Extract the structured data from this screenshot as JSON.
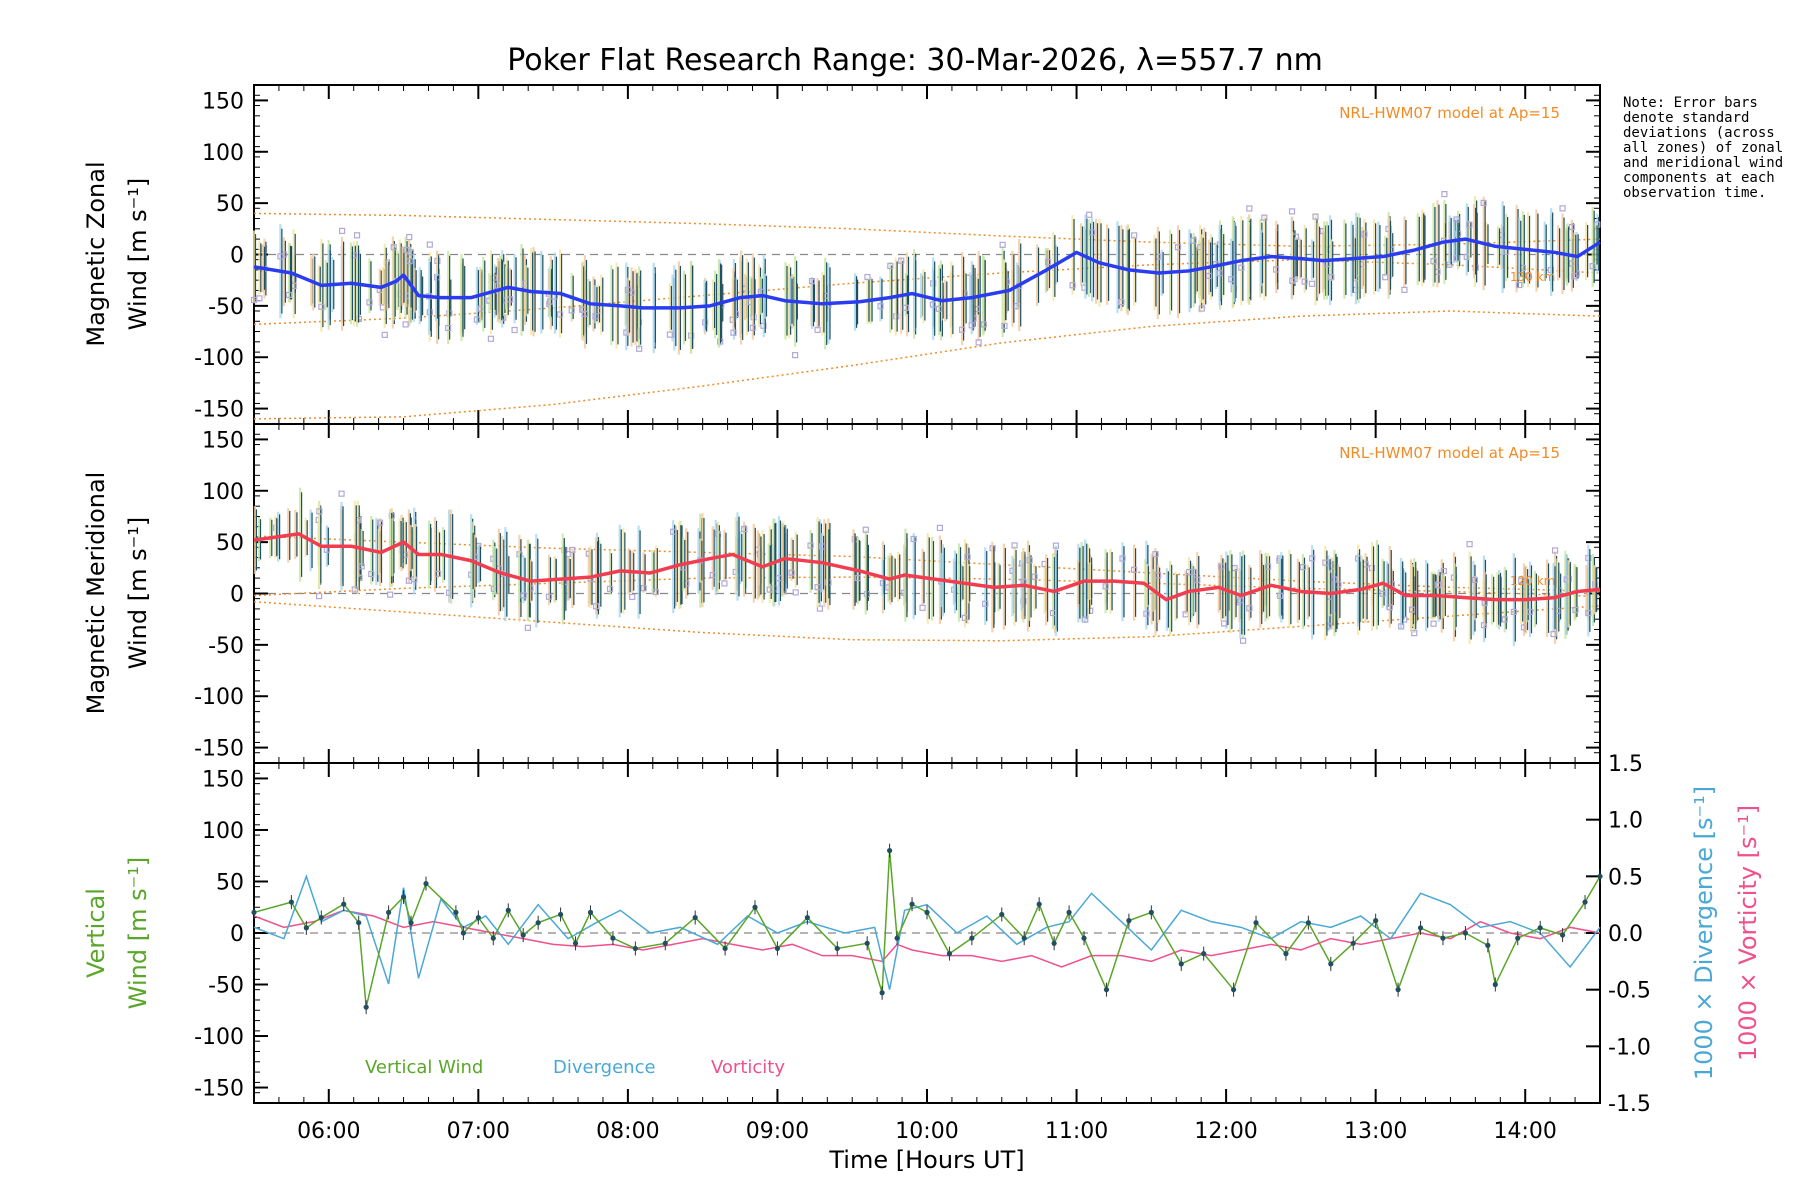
{
  "colors": {
    "zonal_line": "#2a3cf0",
    "meridional_line": "#f23c50",
    "model": "#f08c28",
    "vertical": "#5aa628",
    "divergence": "#4aa8d6",
    "vorticity": "#f0508c",
    "scatter": "#b0a8d8",
    "errbar": "#1f4f60"
  },
  "note": "Note: Error bars denote standard deviations (across all zones) of zonal and meridional wind components at each observation time.",
  "chart_data": [
    {
      "type": "line",
      "id": "zonal",
      "title": "Poker Flat Research Range: 30-Mar-2026, λ=557.7 nm",
      "ylabel_line1": "Magnetic Zonal",
      "ylabel_line2": "Wind [m s⁻¹]",
      "xlim": [
        5.5,
        14.5
      ],
      "ylim": [
        -165,
        165
      ],
      "yticks": [
        -150,
        -100,
        -50,
        0,
        50,
        100,
        150
      ],
      "model_label": "NRL-HWM07 model at Ap=15",
      "model_alt_label": "130 km",
      "series": [
        {
          "name": "Zonal wind",
          "x": [
            5.5,
            5.75,
            5.95,
            6.15,
            6.35,
            6.45,
            6.5,
            6.6,
            6.75,
            6.95,
            7.1,
            7.2,
            7.35,
            7.55,
            7.75,
            7.95,
            8.1,
            8.35,
            8.55,
            8.75,
            8.9,
            9.05,
            9.3,
            9.55,
            9.75,
            9.9,
            10.1,
            10.3,
            10.55,
            10.8,
            11.0,
            11.15,
            11.35,
            11.55,
            11.75,
            11.9,
            12.1,
            12.3,
            12.5,
            12.65,
            12.85,
            13.05,
            13.25,
            13.45,
            13.6,
            13.8,
            14.0,
            14.2,
            14.35,
            14.5
          ],
          "y": [
            -12,
            -18,
            -30,
            -28,
            -32,
            -26,
            -20,
            -40,
            -42,
            -42,
            -36,
            -32,
            -36,
            -38,
            -48,
            -50,
            -52,
            -52,
            -50,
            -42,
            -40,
            -45,
            -48,
            -46,
            -42,
            -38,
            -45,
            -42,
            -35,
            -15,
            2,
            -8,
            -15,
            -18,
            -16,
            -12,
            -6,
            -2,
            -4,
            -6,
            -4,
            -2,
            4,
            12,
            15,
            8,
            5,
            2,
            -2,
            12
          ]
        },
        {
          "name": "Model",
          "x": [
            5.5,
            6.5,
            7.5,
            8.5,
            9.5,
            10.5,
            11.5,
            12.5,
            13.5,
            14.5
          ],
          "y": [
            -68,
            -62,
            -52,
            -40,
            -28,
            -18,
            -10,
            -5,
            -10,
            -18
          ]
        },
        {
          "name": "Model upper",
          "x": [
            5.5,
            6.5,
            7.5,
            8.5,
            9.5,
            10.5,
            11.5,
            12.5,
            13.5,
            14.5
          ],
          "y": [
            40,
            38,
            34,
            30,
            25,
            18,
            12,
            8,
            10,
            15
          ]
        },
        {
          "name": "Model lower",
          "x": [
            5.5,
            6.5,
            7.5,
            8.5,
            9.5,
            10.5,
            11.5,
            12.5,
            13.5,
            14.5
          ],
          "y": [
            -160,
            -158,
            -146,
            -128,
            -108,
            -86,
            -70,
            -60,
            -55,
            -60
          ]
        }
      ]
    },
    {
      "type": "line",
      "id": "meridional",
      "ylabel_line1": "Magnetic Meridional",
      "ylabel_line2": "Wind [m s⁻¹]",
      "xlim": [
        5.5,
        14.5
      ],
      "ylim": [
        -165,
        165
      ],
      "yticks": [
        -150,
        -100,
        -50,
        0,
        50,
        100,
        150
      ],
      "model_label": "NRL-HWM07 model at Ap=15",
      "model_alt_label": "120 km",
      "series": [
        {
          "name": "Meridional wind",
          "x": [
            5.5,
            5.65,
            5.8,
            5.95,
            6.15,
            6.35,
            6.5,
            6.6,
            6.75,
            6.95,
            7.15,
            7.35,
            7.55,
            7.75,
            7.95,
            8.15,
            8.35,
            8.55,
            8.7,
            8.9,
            9.05,
            9.3,
            9.55,
            9.75,
            9.85,
            10.05,
            10.25,
            10.45,
            10.65,
            10.85,
            11.05,
            11.25,
            11.45,
            11.6,
            11.75,
            11.95,
            12.1,
            12.3,
            12.5,
            12.7,
            12.9,
            13.05,
            13.2,
            13.4,
            13.6,
            13.8,
            14.0,
            14.2,
            14.35,
            14.5
          ],
          "y": [
            52,
            55,
            58,
            46,
            46,
            40,
            50,
            38,
            38,
            32,
            20,
            12,
            14,
            16,
            22,
            20,
            28,
            34,
            38,
            26,
            34,
            30,
            22,
            14,
            18,
            14,
            10,
            6,
            8,
            2,
            12,
            12,
            10,
            -6,
            2,
            6,
            -2,
            8,
            2,
            0,
            4,
            10,
            -2,
            -2,
            -4,
            -6,
            -6,
            -4,
            2,
            4
          ]
        },
        {
          "name": "Model",
          "x": [
            5.5,
            6.5,
            7.5,
            8.5,
            9.5,
            10.5,
            11.5,
            12.5,
            13.5,
            14.5
          ],
          "y": [
            -2,
            5,
            10,
            15,
            16,
            14,
            10,
            5,
            2,
            -3
          ]
        },
        {
          "name": "Model upper",
          "x": [
            5.5,
            6.5,
            7.5,
            8.5,
            9.5,
            10.5,
            11.5,
            12.5,
            13.5,
            14.5
          ],
          "y": [
            56,
            50,
            44,
            40,
            36,
            28,
            20,
            12,
            6,
            2
          ]
        },
        {
          "name": "Model lower",
          "x": [
            5.5,
            6.5,
            7.5,
            8.5,
            9.5,
            10.5,
            11.5,
            12.5,
            13.5,
            14.5
          ],
          "y": [
            -8,
            -18,
            -28,
            -38,
            -45,
            -46,
            -42,
            -32,
            -22,
            -12
          ]
        }
      ]
    },
    {
      "type": "line",
      "id": "vertical",
      "xlabel": "Time [Hours UT]",
      "xticks": [
        "06:00",
        "07:00",
        "08:00",
        "09:00",
        "10:00",
        "11:00",
        "12:00",
        "13:00",
        "14:00"
      ],
      "xtick_values": [
        6,
        7,
        8,
        9,
        10,
        11,
        12,
        13,
        14
      ],
      "ylabel_line1": "Vertical",
      "ylabel_line2": "Wind [m s⁻¹]",
      "right_label_divergence": "1000 × Divergence [s⁻¹]",
      "right_label_vorticity": "1000 × Vorticity [s⁻¹]",
      "xlim": [
        5.5,
        14.5
      ],
      "ylim": [
        -165,
        165
      ],
      "yticks": [
        -150,
        -100,
        -50,
        0,
        50,
        100,
        150
      ],
      "y2lim": [
        -1.5,
        1.5
      ],
      "y2ticks": [
        -1.5,
        -1.0,
        -0.5,
        0.0,
        0.5,
        1.0,
        1.5
      ],
      "legend": [
        "Vertical Wind",
        "Divergence",
        "Vorticity"
      ],
      "series": [
        {
          "name": "Vertical Wind",
          "x": [
            5.5,
            5.75,
            5.85,
            5.95,
            6.1,
            6.2,
            6.25,
            6.4,
            6.5,
            6.55,
            6.65,
            6.85,
            6.9,
            7.0,
            7.1,
            7.2,
            7.3,
            7.4,
            7.55,
            7.65,
            7.75,
            7.9,
            8.05,
            8.25,
            8.45,
            8.65,
            8.85,
            9.0,
            9.2,
            9.4,
            9.6,
            9.7,
            9.75,
            9.8,
            9.9,
            10.0,
            10.15,
            10.3,
            10.5,
            10.65,
            10.75,
            10.85,
            10.95,
            11.05,
            11.2,
            11.35,
            11.5,
            11.7,
            11.85,
            12.05,
            12.2,
            12.4,
            12.55,
            12.7,
            12.85,
            13.0,
            13.15,
            13.3,
            13.45,
            13.6,
            13.75,
            13.8,
            13.95,
            14.1,
            14.25,
            14.4,
            14.5
          ],
          "y": [
            20,
            30,
            5,
            15,
            28,
            10,
            -72,
            20,
            35,
            10,
            48,
            20,
            0,
            15,
            -5,
            22,
            -2,
            10,
            18,
            -10,
            20,
            -5,
            -15,
            -10,
            15,
            -15,
            25,
            -15,
            15,
            -15,
            -10,
            -58,
            80,
            -5,
            28,
            20,
            -20,
            -5,
            18,
            -5,
            28,
            -10,
            20,
            -5,
            -55,
            12,
            20,
            -30,
            -20,
            -55,
            10,
            -20,
            10,
            -30,
            -10,
            12,
            -55,
            5,
            -5,
            0,
            -12,
            -50,
            -5,
            5,
            -2,
            30,
            55
          ]
        },
        {
          "name": "Divergence",
          "x": [
            5.5,
            5.7,
            5.85,
            5.95,
            6.1,
            6.25,
            6.4,
            6.5,
            6.6,
            6.75,
            6.9,
            7.05,
            7.2,
            7.4,
            7.6,
            7.8,
            7.95,
            8.15,
            8.35,
            8.6,
            8.8,
            9.0,
            9.2,
            9.45,
            9.65,
            9.75,
            9.85,
            10.0,
            10.2,
            10.4,
            10.6,
            10.8,
            10.95,
            11.1,
            11.3,
            11.5,
            11.7,
            11.9,
            12.1,
            12.3,
            12.5,
            12.7,
            12.9,
            13.1,
            13.3,
            13.5,
            13.7,
            13.9,
            14.1,
            14.3,
            14.5
          ],
          "y": [
            0.05,
            -0.05,
            0.5,
            0.1,
            0.2,
            0.15,
            -0.45,
            0.4,
            -0.4,
            0.3,
            0.05,
            0.15,
            -0.1,
            0.25,
            -0.05,
            0.1,
            0.2,
            0.0,
            0.05,
            -0.1,
            0.15,
            0.0,
            0.1,
            0.0,
            0.05,
            -0.5,
            0.2,
            0.25,
            0.0,
            0.15,
            -0.1,
            0.05,
            0.1,
            0.35,
            0.1,
            -0.15,
            0.2,
            0.1,
            0.05,
            -0.05,
            0.1,
            0.05,
            0.15,
            -0.05,
            0.35,
            0.25,
            0.05,
            0.1,
            0.0,
            -0.3,
            0.05
          ]
        },
        {
          "name": "Vorticity",
          "x": [
            5.5,
            5.7,
            5.9,
            6.1,
            6.3,
            6.5,
            6.7,
            6.9,
            7.1,
            7.3,
            7.5,
            7.7,
            7.9,
            8.1,
            8.3,
            8.5,
            8.7,
            8.9,
            9.1,
            9.3,
            9.5,
            9.7,
            9.8,
            9.9,
            10.1,
            10.3,
            10.5,
            10.7,
            10.9,
            11.1,
            11.3,
            11.5,
            11.7,
            11.9,
            12.1,
            12.3,
            12.5,
            12.7,
            12.9,
            13.1,
            13.3,
            13.5,
            13.7,
            13.9,
            14.1,
            14.3,
            14.5
          ],
          "y": [
            0.15,
            0.05,
            0.1,
            0.2,
            0.15,
            0.05,
            0.1,
            0.05,
            0.0,
            -0.05,
            -0.1,
            -0.12,
            -0.1,
            -0.15,
            -0.1,
            -0.05,
            -0.1,
            -0.15,
            -0.1,
            -0.2,
            -0.2,
            -0.25,
            -0.1,
            -0.15,
            -0.2,
            -0.2,
            -0.25,
            -0.2,
            -0.3,
            -0.2,
            -0.2,
            -0.25,
            -0.15,
            -0.2,
            -0.15,
            -0.1,
            -0.15,
            -0.05,
            -0.1,
            -0.05,
            0.0,
            -0.05,
            0.1,
            0.0,
            -0.05,
            0.05,
            0.0
          ]
        }
      ]
    }
  ]
}
